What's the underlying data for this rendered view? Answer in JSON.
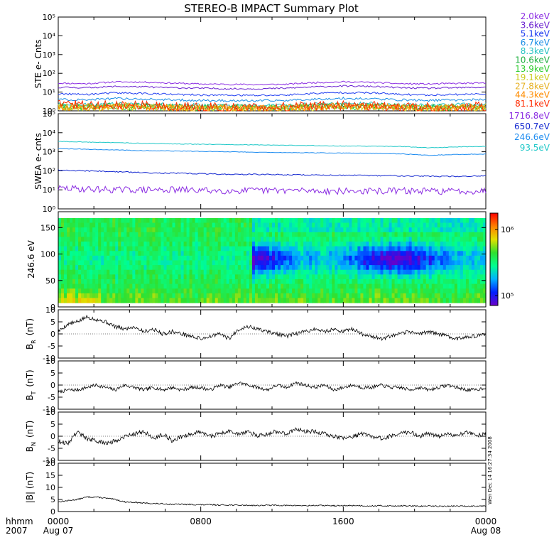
{
  "title": "STEREO-B IMPACT Summary Plot",
  "colors": {
    "ste": [
      "#8a2be2",
      "#6a1fd0",
      "#1e3cf0",
      "#1a8ee6",
      "#26c2c2",
      "#20b040",
      "#2ecc2e",
      "#cccc20",
      "#e6b020",
      "#ff8c00",
      "#ff2a00"
    ],
    "swea": [
      "#8a2be2",
      "#1428d0",
      "#1e8cf0",
      "#20c8c8"
    ],
    "mag_line": "#000000",
    "colorbar": [
      "#6a00c8",
      "#0020ff",
      "#00b0ff",
      "#00ff90",
      "#30e030",
      "#e0e000",
      "#ff8000",
      "#ff0000"
    ]
  },
  "chart_data": [
    {
      "type": "line",
      "ylabel": "STE e- Cnts",
      "yscale": "log",
      "ylim": [
        1,
        100000
      ],
      "yticks": [
        "10⁰",
        "10¹",
        "10²",
        "10³",
        "10⁴",
        "10⁵"
      ],
      "legend_placement": "right",
      "series": [
        {
          "name": "2.0keV",
          "values": [
            30,
            28,
            35,
            34,
            30,
            27,
            26,
            25,
            26,
            32,
            35,
            33,
            28,
            27,
            29,
            30
          ]
        },
        {
          "name": "3.6keV",
          "values": [
            18,
            17,
            20,
            19,
            17,
            16,
            15,
            15,
            16,
            19,
            21,
            20,
            17,
            16,
            17,
            18
          ]
        },
        {
          "name": "5.1keV",
          "values": [
            8,
            7.5,
            9,
            8.5,
            7.5,
            7,
            6.8,
            6.6,
            7,
            8.5,
            9.5,
            9,
            7.5,
            7,
            7.5,
            8
          ]
        },
        {
          "name": "6.7keV",
          "values": [
            4,
            3.8,
            4.5,
            4.2,
            3.8,
            3.6,
            3.5,
            3.4,
            3.6,
            4.2,
            4.6,
            4.4,
            3.8,
            3.6,
            3.8,
            4
          ]
        },
        {
          "name": "8.3keV",
          "values": [
            2.2,
            2.1,
            2.4,
            2.3,
            2.1,
            2,
            1.9,
            1.9,
            2,
            2.3,
            2.5,
            2.4,
            2.1,
            2,
            2.1,
            2.2
          ]
        },
        {
          "name": "10.6keV",
          "values": [
            1.8,
            1.7,
            1.9,
            1.8,
            1.7,
            1.6,
            1.6,
            1.5,
            1.6,
            1.8,
            1.9,
            1.9,
            1.7,
            1.6,
            1.7,
            1.7
          ]
        },
        {
          "name": "13.9keV",
          "values": [
            1.6,
            1.5,
            1.7,
            1.6,
            1.5,
            1.4,
            1.4,
            1.4,
            1.5,
            1.6,
            1.7,
            1.7,
            1.5,
            1.4,
            1.5,
            1.5
          ]
        },
        {
          "name": "19.1keV",
          "values": [
            1.5,
            1.4,
            1.6,
            1.5,
            1.4,
            1.3,
            1.3,
            1.3,
            1.4,
            1.5,
            1.6,
            1.6,
            1.4,
            1.3,
            1.4,
            1.4
          ]
        },
        {
          "name": "27.8keV",
          "values": [
            1.6,
            1.5,
            1.7,
            1.6,
            1.4,
            1.3,
            1.3,
            1.3,
            1.4,
            1.5,
            1.7,
            1.6,
            1.4,
            1.3,
            1.4,
            1.5
          ]
        },
        {
          "name": "44.3keV",
          "values": [
            1.7,
            1.6,
            1.8,
            1.7,
            1.5,
            1.4,
            1.4,
            1.4,
            1.5,
            1.6,
            1.8,
            1.7,
            1.5,
            1.4,
            1.5,
            1.6
          ]
        },
        {
          "name": "81.1keV",
          "values": [
            2.2,
            2,
            2.1,
            1.9,
            1.7,
            1.6,
            1.5,
            1.5,
            1.6,
            1.8,
            1.9,
            1.8,
            1.6,
            1.5,
            1.6,
            1.7
          ]
        }
      ]
    },
    {
      "type": "line",
      "ylabel": "SWEA e- cnts",
      "yscale": "log",
      "ylim": [
        1,
        100000
      ],
      "yticks": [
        "10⁰",
        "10¹",
        "10²",
        "10³",
        "10⁴",
        "10⁵"
      ],
      "legend_placement": "right",
      "series": [
        {
          "name": "1716.8eV",
          "values": [
            12,
            11,
            10,
            10,
            10,
            9.5,
            9,
            9,
            9.5,
            9,
            8.5,
            8.5,
            9,
            8.5,
            8.5,
            9
          ]
        },
        {
          "name": "650.7eV",
          "values": [
            110,
            100,
            90,
            80,
            75,
            70,
            65,
            65,
            62,
            60,
            58,
            56,
            55,
            52,
            50,
            55
          ]
        },
        {
          "name": "246.6eV",
          "values": [
            1500,
            1350,
            1250,
            1150,
            1100,
            1050,
            1000,
            950,
            900,
            880,
            850,
            820,
            780,
            650,
            720,
            760
          ]
        },
        {
          "name": "93.5eV",
          "values": [
            3500,
            3200,
            3000,
            2800,
            2600,
            2500,
            2400,
            2300,
            2200,
            2100,
            2000,
            1950,
            1900,
            1600,
            1800,
            1900
          ]
        }
      ]
    },
    {
      "type": "heatmap",
      "ylabel": "246.6 eV",
      "ylim": [
        0,
        180
      ],
      "yticks": [
        0,
        50,
        100,
        150
      ],
      "colorbar_ticks": [
        "10⁵",
        "10⁶"
      ],
      "colorbar_log_range": [
        4.85,
        6.25
      ]
    },
    {
      "type": "line",
      "ylabel_main": "B",
      "ylabel_sub": "R",
      "ylabel_unit": "(nT)",
      "ylim": [
        -10,
        10
      ],
      "yticks": [
        -10,
        -5,
        0,
        5,
        10
      ],
      "series": [
        {
          "values": [
            1,
            4,
            5,
            7,
            6,
            5,
            3,
            2,
            3,
            1,
            2,
            0,
            1,
            0,
            -1,
            -2,
            -1,
            0,
            -2,
            2,
            3,
            2,
            1,
            0,
            -1,
            0,
            1,
            2,
            1,
            2,
            1,
            2,
            0,
            -1,
            -2,
            -1,
            0,
            1,
            0,
            1,
            0,
            -1,
            -2,
            -1,
            -1,
            0
          ]
        }
      ]
    },
    {
      "type": "line",
      "ylabel_main": "B",
      "ylabel_sub": "T",
      "ylabel_unit": "(nT)",
      "ylim": [
        -10,
        10
      ],
      "yticks": [
        -10,
        -5,
        0,
        5,
        10
      ],
      "series": [
        {
          "values": [
            -3,
            -2,
            -2,
            -1,
            0,
            -1,
            -2,
            0,
            -1,
            -2,
            -1,
            -2,
            -1,
            -2,
            -1,
            -1,
            -2,
            0,
            -1,
            1,
            0,
            -1,
            -2,
            0,
            -1,
            1,
            0,
            -1,
            0,
            -2,
            -1,
            0,
            -1,
            -1,
            0,
            -1,
            -1,
            -2,
            -1,
            -2,
            -1,
            0,
            -1,
            -2,
            -2,
            -1
          ]
        }
      ]
    },
    {
      "type": "line",
      "ylabel_main": "B",
      "ylabel_sub": "N",
      "ylabel_unit": "(nT)",
      "ylim": [
        -10,
        10
      ],
      "yticks": [
        -10,
        -5,
        0,
        5,
        10
      ],
      "series": [
        {
          "values": [
            -2,
            -3,
            2,
            -1,
            -2,
            -3,
            -2,
            0,
            1,
            2,
            -1,
            1,
            -2,
            0,
            1,
            2,
            0,
            1,
            2,
            1,
            2,
            0,
            1,
            2,
            1,
            3,
            2,
            2,
            1,
            0,
            -1,
            0,
            1,
            0,
            -1,
            0,
            1,
            2,
            0,
            1,
            0,
            1,
            0,
            2,
            0,
            1
          ]
        }
      ]
    },
    {
      "type": "line",
      "ylabel": "|B| (nT)",
      "ylim": [
        0,
        20
      ],
      "yticks": [
        0,
        5,
        10,
        15,
        20
      ],
      "series": [
        {
          "values": [
            4,
            4.5,
            5,
            6,
            6,
            5.5,
            5,
            4,
            3.8,
            3.5,
            3.3,
            3.2,
            3,
            3,
            2.9,
            2.8,
            2.8,
            2.7,
            2.7,
            2.6,
            2.6,
            2.5,
            2.6,
            2.6,
            2.5,
            2.5,
            2.4,
            2.5,
            2.5,
            2.4,
            2.4,
            2.5,
            2.4,
            2.3,
            2.4,
            2.3,
            2.4,
            2.3,
            2.2,
            2.3,
            2.2,
            2.2,
            2.3,
            2.2,
            2.3,
            2.4
          ]
        }
      ]
    }
  ],
  "xaxis": {
    "row_label_1": "hhmm",
    "row_label_2": "2007",
    "ticks": [
      {
        "time": "0000",
        "date": "Aug 07",
        "hour": 0
      },
      {
        "time": "0800",
        "date": "",
        "hour": 8
      },
      {
        "time": "1600",
        "date": "",
        "hour": 16
      },
      {
        "time": "0000",
        "date": "Aug 08",
        "hour": 24
      }
    ]
  },
  "stamp": "Wen Dec 14 16:27:34 2008"
}
